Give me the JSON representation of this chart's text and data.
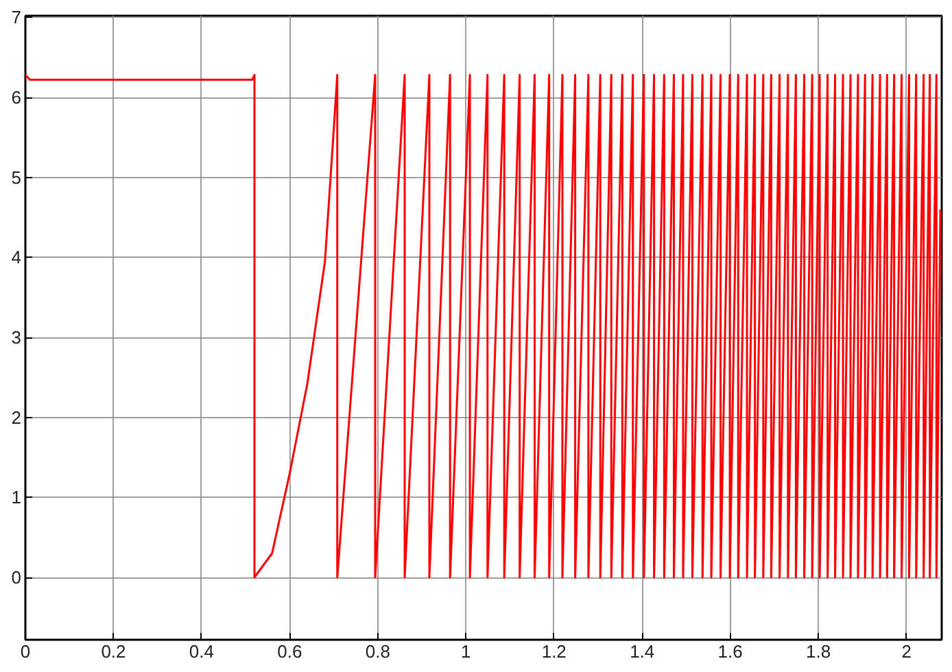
{
  "chart_data": {
    "type": "line",
    "x": [
      0,
      0.01,
      0.515,
      0.52,
      0.52,
      0.56,
      0.6,
      0.64,
      0.68,
      0.7,
      0.708,
      0.708,
      0.794,
      0.794,
      0.861,
      0.861,
      0.917,
      0.917,
      0.964,
      0.964,
      1.009,
      1.009,
      1.049,
      1.049,
      1.087,
      1.087,
      1.122,
      1.122,
      1.156,
      1.156,
      1.189,
      1.189,
      1.219,
      1.219,
      1.248,
      1.248,
      1.278,
      1.278,
      1.305,
      1.305,
      1.33,
      1.33,
      1.355,
      1.355,
      1.379,
      1.379,
      1.404,
      1.404,
      1.427,
      1.427,
      1.45,
      1.45,
      1.472,
      1.472,
      1.493,
      1.493,
      1.514,
      1.514,
      1.537,
      1.537,
      1.557,
      1.557,
      1.578,
      1.578,
      1.599,
      1.599,
      1.618,
      1.618,
      1.638,
      1.638,
      1.656,
      1.656,
      1.675,
      1.675,
      1.693,
      1.693,
      1.712,
      1.712,
      1.731,
      1.731,
      1.749,
      1.749,
      1.768,
      1.768,
      1.786,
      1.786,
      1.803,
      1.803,
      1.821,
      1.821,
      1.838,
      1.838,
      1.856,
      1.856,
      1.873,
      1.873,
      1.89,
      1.89,
      1.906,
      1.906,
      1.923,
      1.923,
      1.94,
      1.94,
      1.956,
      1.956,
      1.972,
      1.972,
      1.989,
      1.989,
      2.006,
      2.006,
      2.022,
      2.022,
      2.039,
      2.039,
      2.053,
      2.053,
      2.068,
      2.068,
      2.077
    ],
    "series": [
      {
        "color": "#ff0000",
        "values": [
          6.28,
          6.22,
          6.22,
          6.28,
          0,
          0.3,
          1.3,
          2.42,
          3.95,
          5.6,
          6.28,
          0,
          6.28,
          0,
          6.28,
          0,
          6.28,
          0,
          6.28,
          0,
          6.28,
          0,
          6.28,
          0,
          6.28,
          0,
          6.28,
          0,
          6.28,
          0,
          6.28,
          0,
          6.28,
          0,
          6.28,
          0,
          6.28,
          0,
          6.28,
          0,
          6.28,
          0,
          6.28,
          0,
          6.28,
          0,
          6.28,
          0,
          6.28,
          0,
          6.28,
          0,
          6.28,
          0,
          6.28,
          0,
          6.28,
          0,
          6.28,
          0,
          6.28,
          0,
          6.28,
          0,
          6.28,
          0,
          6.28,
          0,
          6.28,
          0,
          6.28,
          0,
          6.28,
          0,
          6.28,
          0,
          6.28,
          0,
          6.28,
          0,
          6.28,
          0,
          6.28,
          0,
          6.28,
          0,
          6.28,
          0,
          6.28,
          0,
          6.28,
          0,
          6.28,
          0,
          6.28,
          0,
          6.28,
          0,
          6.28,
          0,
          6.28,
          0,
          6.28,
          0,
          6.28,
          0,
          6.28,
          0,
          6.28,
          0,
          6.28,
          0,
          6.28,
          0,
          6.28,
          0,
          6.28,
          0,
          6.28,
          0,
          4.6
        ]
      }
    ],
    "xlim": [
      0,
      2.08
    ],
    "ylim": [
      -0.78,
      7.02
    ],
    "xticks": [
      0,
      0.2,
      0.4,
      0.6,
      0.8,
      1,
      1.2,
      1.4,
      1.6,
      1.8,
      2
    ],
    "yticks": [
      0,
      1,
      2,
      3,
      4,
      5,
      6,
      7
    ],
    "grid": true,
    "line_style": "solid",
    "marker": "none"
  }
}
